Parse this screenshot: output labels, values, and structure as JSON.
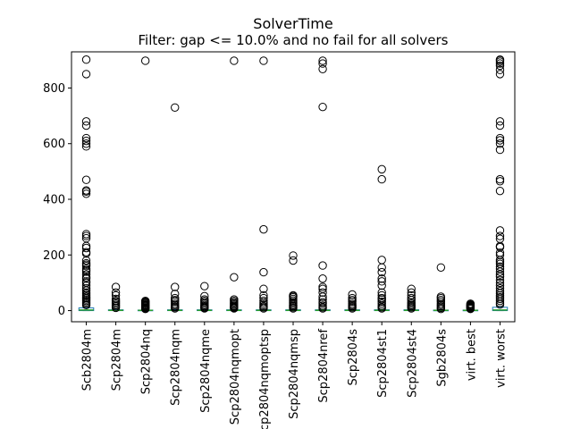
{
  "chart_data": {
    "type": "box",
    "title": "SolverTime",
    "subtitle": "Filter: gap <= 10.0% and no fail for all solvers",
    "xlabel": "",
    "ylabel": "",
    "ylim": [
      -40,
      930
    ],
    "yticks": [
      0,
      200,
      400,
      600,
      800
    ],
    "grid": false,
    "legend": "none",
    "colors": {
      "box": "#1f77b4",
      "median": "#2ca02c",
      "flier": "#000000",
      "axes": "#000000"
    },
    "series": [
      {
        "name": "Scb2804m",
        "q1": 0,
        "median": 2,
        "q3": 10,
        "whisker_low": 0,
        "whisker_high": 12,
        "fliers": [
          20,
          25,
          30,
          35,
          40,
          45,
          50,
          55,
          60,
          65,
          72,
          80,
          90,
          100,
          105,
          115,
          120,
          130,
          140,
          145,
          150,
          160,
          165,
          170,
          180,
          205,
          210,
          225,
          232,
          260,
          268,
          275,
          420,
          428,
          432,
          470,
          590,
          600,
          610,
          620,
          665,
          680,
          850,
          902
        ]
      },
      {
        "name": "Scp2804m",
        "q1": 0,
        "median": 1,
        "q3": 3,
        "whisker_low": 0,
        "whisker_high": 6,
        "fliers": [
          10,
          15,
          20,
          25,
          30,
          35,
          42,
          55,
          65,
          85
        ]
      },
      {
        "name": "Scp2804nq",
        "q1": 0,
        "median": 1,
        "q3": 2,
        "whisker_low": 0,
        "whisker_high": 4,
        "fliers": [
          6,
          8,
          10,
          12,
          15,
          18,
          20,
          22,
          25,
          28,
          30,
          33,
          35,
          898
        ]
      },
      {
        "name": "Scp2804nqm",
        "q1": 0,
        "median": 1,
        "q3": 3,
        "whisker_low": 0,
        "whisker_high": 5,
        "fliers": [
          8,
          12,
          15,
          20,
          25,
          32,
          38,
          45,
          60,
          85,
          730
        ]
      },
      {
        "name": "Scp2804nqme",
        "q1": 0,
        "median": 1,
        "q3": 3,
        "whisker_low": 0,
        "whisker_high": 5,
        "fliers": [
          8,
          10,
          13,
          16,
          20,
          25,
          30,
          35,
          40,
          52,
          88
        ]
      },
      {
        "name": "Scp2804nqmopt",
        "q1": 0,
        "median": 1,
        "q3": 3,
        "whisker_low": 0,
        "whisker_high": 5,
        "fliers": [
          8,
          10,
          12,
          15,
          18,
          22,
          26,
          30,
          35,
          40,
          120,
          898
        ]
      },
      {
        "name": "Scp2804nqmoptsp",
        "q1": 0,
        "median": 1,
        "q3": 3,
        "whisker_low": 0,
        "whisker_high": 5,
        "fliers": [
          8,
          12,
          16,
          22,
          28,
          35,
          45,
          55,
          78,
          138,
          292,
          898
        ]
      },
      {
        "name": "Scp2804nqmsp",
        "q1": 0,
        "median": 1,
        "q3": 3,
        "whisker_low": 0,
        "whisker_high": 5,
        "fliers": [
          8,
          12,
          16,
          20,
          25,
          30,
          36,
          42,
          48,
          52,
          55,
          180,
          198
        ]
      },
      {
        "name": "Scp2804nref",
        "q1": 0,
        "median": 1,
        "q3": 3,
        "whisker_low": 0,
        "whisker_high": 5,
        "fliers": [
          8,
          12,
          18,
          25,
          30,
          40,
          50,
          65,
          78,
          85,
          115,
          162,
          732,
          868,
          888,
          898
        ]
      },
      {
        "name": "Scp2804s",
        "q1": 0,
        "median": 1,
        "q3": 3,
        "whisker_low": 0,
        "whisker_high": 5,
        "fliers": [
          8,
          12,
          16,
          20,
          25,
          32,
          38,
          45,
          58
        ]
      },
      {
        "name": "Scp2804st1",
        "q1": 0,
        "median": 1,
        "q3": 3,
        "whisker_low": 0,
        "whisker_high": 5,
        "fliers": [
          8,
          12,
          18,
          25,
          32,
          40,
          45,
          55,
          65,
          90,
          105,
          115,
          138,
          155,
          182,
          472,
          508
        ]
      },
      {
        "name": "Scp2804st4",
        "q1": 0,
        "median": 1,
        "q3": 3,
        "whisker_low": 0,
        "whisker_high": 5,
        "fliers": [
          8,
          12,
          16,
          20,
          25,
          30,
          38,
          45,
          55,
          65,
          78
        ]
      },
      {
        "name": "Sgb2804s",
        "q1": 0,
        "median": 1,
        "q3": 2,
        "whisker_low": 0,
        "whisker_high": 4,
        "fliers": [
          6,
          10,
          15,
          20,
          25,
          32,
          38,
          45,
          50,
          155
        ]
      },
      {
        "name": "virt. best",
        "q1": 0,
        "median": 1,
        "q3": 2,
        "whisker_low": 0,
        "whisker_high": 4,
        "fliers": [
          6,
          8,
          10,
          12,
          14,
          16,
          18,
          20,
          22,
          25
        ]
      },
      {
        "name": "virt. worst",
        "q1": 0,
        "median": 2,
        "q3": 12,
        "whisker_low": 0,
        "whisker_high": 14,
        "fliers": [
          22,
          28,
          35,
          42,
          48,
          55,
          62,
          70,
          80,
          90,
          100,
          110,
          122,
          130,
          140,
          150,
          158,
          168,
          175,
          182,
          200,
          208,
          228,
          232,
          258,
          268,
          288,
          430,
          465,
          472,
          578,
          600,
          612,
          620,
          665,
          680,
          850,
          865,
          880,
          888,
          895,
          900,
          902
        ]
      }
    ]
  }
}
